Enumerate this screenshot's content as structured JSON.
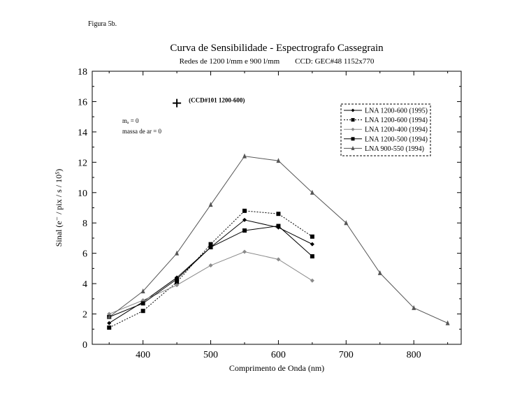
{
  "figure_label": "Figura 5b.",
  "chart_data": {
    "type": "line",
    "title": "Curva de Sensibilidade - Espectrografo Cassegrain",
    "subtitle": "Redes de 1200 l/mm e 900 l/mm        CCD: GEC#48 1152x770",
    "xlabel": "Comprimento de Onda (nm)",
    "ylabel": "Sinal (e⁻ / pix / s / 10⁵)",
    "xlim": [
      325,
      870
    ],
    "ylim": [
      0,
      18
    ],
    "x_ticks": [
      400,
      500,
      600,
      700,
      800
    ],
    "y_ticks": [
      0,
      2,
      4,
      6,
      8,
      10,
      12,
      14,
      16,
      18
    ],
    "grid": false,
    "legend_position": "top-right",
    "annotation_point": {
      "x": 450,
      "y": 15.9,
      "label": "(CCD#101 1200-600)"
    },
    "annotation_text": [
      "mₐ = 0",
      "massa de ar = 0"
    ],
    "series": [
      {
        "name": "LNA 1200-600 (1995)",
        "color": "#000000",
        "dash": "solid",
        "marker": "diamond",
        "x": [
          350,
          400,
          450,
          500,
          550,
          600,
          650
        ],
        "y": [
          1.4,
          2.8,
          4.4,
          6.4,
          8.2,
          7.7,
          6.6
        ]
      },
      {
        "name": "LNA 1200-600 (1994)",
        "color": "#000000",
        "dash": "dotted",
        "marker": "square",
        "x": [
          350,
          400,
          450,
          500,
          550,
          600,
          650
        ],
        "y": [
          1.1,
          2.2,
          4.1,
          6.6,
          8.8,
          8.6,
          7.1
        ]
      },
      {
        "name": "LNA 1200-400 (1994)",
        "color": "#8a8a8a",
        "dash": "solid",
        "marker": "diamond",
        "x": [
          350,
          400,
          450,
          500,
          550,
          600,
          650
        ],
        "y": [
          2.0,
          2.9,
          3.9,
          5.2,
          6.1,
          5.6,
          4.2
        ]
      },
      {
        "name": "LNA 1200-500 (1994)",
        "color": "#000000",
        "dash": "solid",
        "marker": "square",
        "x": [
          350,
          400,
          450,
          500,
          550,
          600,
          650
        ],
        "y": [
          1.8,
          2.7,
          4.3,
          6.4,
          7.5,
          7.8,
          5.8
        ]
      },
      {
        "name": "LNA  900-550 (1994)",
        "color": "#555555",
        "dash": "solid",
        "marker": "triangle",
        "x": [
          350,
          400,
          450,
          500,
          550,
          600,
          650,
          700,
          750,
          800,
          850
        ],
        "y": [
          1.8,
          3.5,
          6.0,
          9.2,
          12.4,
          12.1,
          10.0,
          8.0,
          4.7,
          2.4,
          1.4
        ]
      }
    ]
  }
}
